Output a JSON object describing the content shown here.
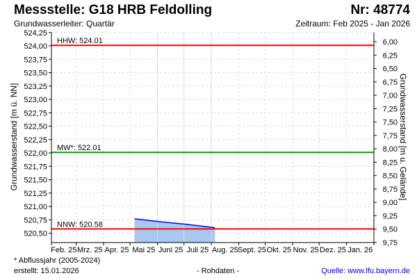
{
  "header": {
    "title": "Messstelle: G18 HRB Feldolling",
    "number": "Nr: 48774",
    "aquifer": "Grundwasserleiter: Quartär",
    "period": "Zeitraum: Feb 2025 - Jan 2026"
  },
  "footer": {
    "note": "* Abflussjahr (2005-2024)",
    "created": "erstellt:  15.01.2026",
    "raw": "- Rohdaten -",
    "source": "Quelle: www.lfu.bayern.de"
  },
  "chart_data": {
    "type": "area",
    "ylabel": "Grundwasserstand [m ü. NN]",
    "ylabel_right": "Grundwasserstand [m u. Gelände]",
    "ylim": [
      520.325,
      524.25
    ],
    "ylim_right": [
      5.828,
      9.75
    ],
    "yticks": [
      "524,25",
      "524,00",
      "523,75",
      "523,50",
      "523,25",
      "523,00",
      "522,75",
      "522,50",
      "522,25",
      "522,00",
      "521,75",
      "521,50",
      "521,25",
      "521,00",
      "520,75",
      "520,50"
    ],
    "yticks_right": [
      "6,00",
      "6,25",
      "6,50",
      "6,75",
      "7,00",
      "7,25",
      "7,50",
      "7,75",
      "8,00",
      "8,25",
      "8,50",
      "8,75",
      "9,00",
      "9,25",
      "9,50",
      "9,75"
    ],
    "xticks": [
      "Feb. 25",
      "Mrz. 25",
      "Apr. 25",
      "Mai 25",
      "Juni 25",
      "Juli 25",
      "Aug. 25",
      "Sept. 25",
      "Okt. 25",
      "Nov. 25",
      "Dez. 25",
      "Jan. 26"
    ],
    "grid": true,
    "reference_lines": [
      {
        "label": "HHW: 524.01",
        "value": 524.01,
        "color": "#ff0000"
      },
      {
        "label": "MW*: 522.01",
        "value": 522.01,
        "color": "#00a000"
      },
      {
        "label": "NNW: 520.58",
        "value": 520.58,
        "color": "#ff0000"
      }
    ],
    "series": [
      {
        "color": "#0000ff",
        "fill": "#a8c8f0",
        "x": [
          "2025-05-06",
          "2025-06-01",
          "2025-07-01",
          "2025-08-01",
          "2025-08-05"
        ],
        "y": [
          520.77,
          520.72,
          520.67,
          520.61,
          520.6
        ]
      }
    ]
  }
}
